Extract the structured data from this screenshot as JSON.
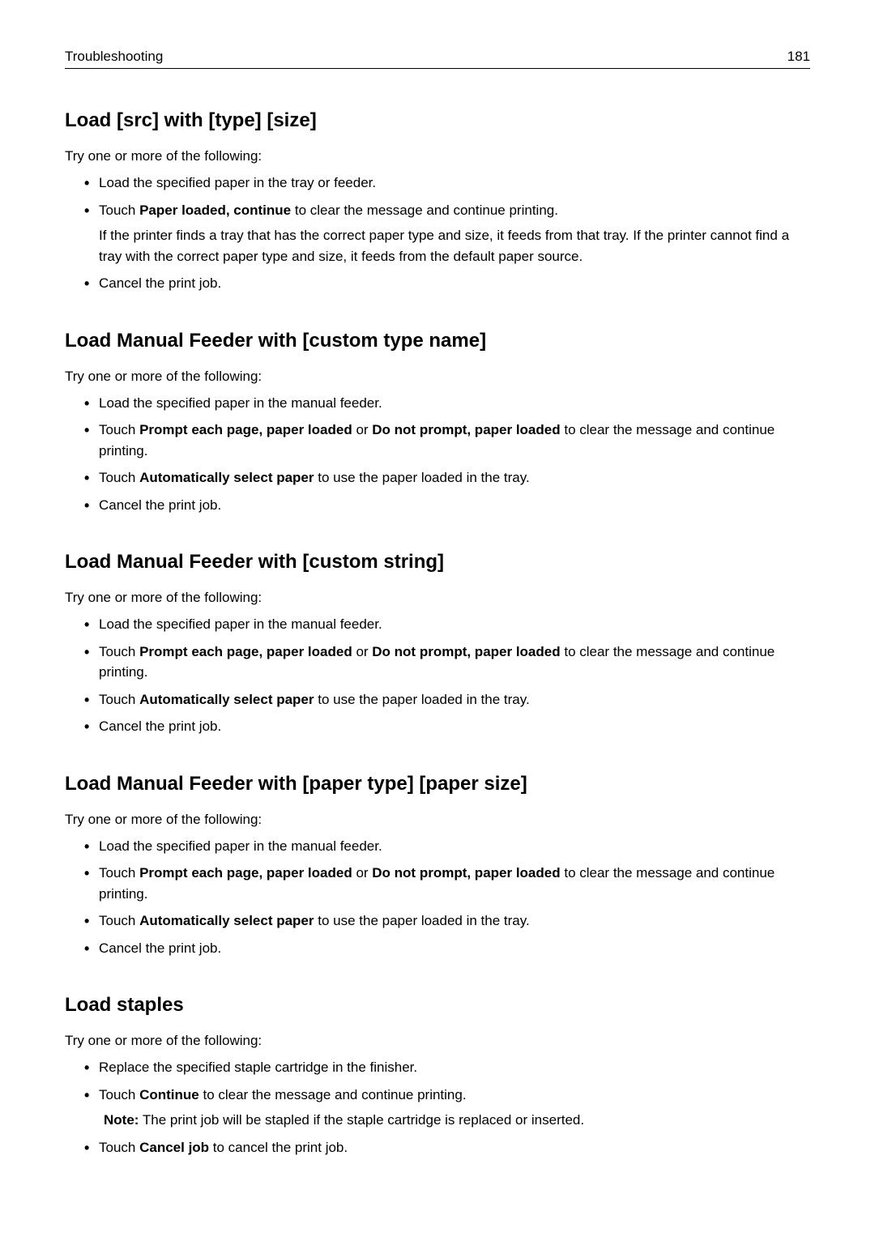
{
  "header": {
    "section_title": "Troubleshooting",
    "page_number": "181"
  },
  "sections": [
    {
      "heading": "Load [src] with [type] [size]",
      "intro": "Try one or more of the following:",
      "items": [
        {
          "runs": [
            {
              "text": "Load the specified paper in the tray or feeder.",
              "bold": false
            }
          ]
        },
        {
          "runs": [
            {
              "text": "Touch ",
              "bold": false
            },
            {
              "text": "Paper loaded, continue",
              "bold": true
            },
            {
              "text": " to clear the message and continue printing.",
              "bold": false
            }
          ],
          "subtext": "If the printer finds a tray that has the correct paper type and size, it feeds from that tray. If the printer cannot find a tray with the correct paper type and size, it feeds from the default paper source."
        },
        {
          "runs": [
            {
              "text": "Cancel the print job.",
              "bold": false
            }
          ]
        }
      ]
    },
    {
      "heading": "Load Manual Feeder with [custom type name]",
      "intro": "Try one or more of the following:",
      "items": [
        {
          "runs": [
            {
              "text": "Load the specified paper in the manual feeder.",
              "bold": false
            }
          ]
        },
        {
          "runs": [
            {
              "text": "Touch ",
              "bold": false
            },
            {
              "text": "Prompt each page, paper loaded",
              "bold": true
            },
            {
              "text": " or ",
              "bold": false
            },
            {
              "text": "Do not prompt, paper loaded",
              "bold": true
            },
            {
              "text": " to clear the message and continue printing.",
              "bold": false
            }
          ]
        },
        {
          "runs": [
            {
              "text": "Touch ",
              "bold": false
            },
            {
              "text": "Automatically select paper",
              "bold": true
            },
            {
              "text": " to use the paper loaded in the tray.",
              "bold": false
            }
          ]
        },
        {
          "runs": [
            {
              "text": "Cancel the print job.",
              "bold": false
            }
          ]
        }
      ]
    },
    {
      "heading": "Load Manual Feeder with [custom string]",
      "intro": "Try one or more of the following:",
      "items": [
        {
          "runs": [
            {
              "text": "Load the specified paper in the manual feeder.",
              "bold": false
            }
          ]
        },
        {
          "runs": [
            {
              "text": "Touch ",
              "bold": false
            },
            {
              "text": "Prompt each page, paper loaded",
              "bold": true
            },
            {
              "text": " or ",
              "bold": false
            },
            {
              "text": "Do not prompt, paper loaded",
              "bold": true
            },
            {
              "text": " to clear the message and continue printing.",
              "bold": false
            }
          ]
        },
        {
          "runs": [
            {
              "text": "Touch ",
              "bold": false
            },
            {
              "text": "Automatically select paper",
              "bold": true
            },
            {
              "text": " to use the paper loaded in the tray.",
              "bold": false
            }
          ]
        },
        {
          "runs": [
            {
              "text": "Cancel the print job.",
              "bold": false
            }
          ]
        }
      ]
    },
    {
      "heading": "Load Manual Feeder with [paper type] [paper size]",
      "intro": "Try one or more of the following:",
      "items": [
        {
          "runs": [
            {
              "text": "Load the specified paper in the manual feeder.",
              "bold": false
            }
          ]
        },
        {
          "runs": [
            {
              "text": "Touch ",
              "bold": false
            },
            {
              "text": "Prompt each page, paper loaded",
              "bold": true
            },
            {
              "text": " or ",
              "bold": false
            },
            {
              "text": "Do not prompt, paper loaded",
              "bold": true
            },
            {
              "text": " to clear the message and continue printing.",
              "bold": false
            }
          ]
        },
        {
          "runs": [
            {
              "text": "Touch ",
              "bold": false
            },
            {
              "text": "Automatically select paper",
              "bold": true
            },
            {
              "text": " to use the paper loaded in the tray.",
              "bold": false
            }
          ]
        },
        {
          "runs": [
            {
              "text": "Cancel the print job.",
              "bold": false
            }
          ]
        }
      ]
    },
    {
      "heading": "Load staples",
      "intro": "Try one or more of the following:",
      "items": [
        {
          "runs": [
            {
              "text": "Replace the specified staple cartridge in the finisher.",
              "bold": false
            }
          ]
        },
        {
          "runs": [
            {
              "text": "Touch ",
              "bold": false
            },
            {
              "text": "Continue",
              "bold": true
            },
            {
              "text": " to clear the message and continue printing.",
              "bold": false
            }
          ],
          "note_runs": [
            {
              "text": "Note:",
              "bold": true
            },
            {
              "text": " The print job will be stapled if the staple cartridge is replaced or inserted.",
              "bold": false
            }
          ]
        },
        {
          "runs": [
            {
              "text": "Touch ",
              "bold": false
            },
            {
              "text": "Cancel job",
              "bold": true
            },
            {
              "text": " to cancel the print job.",
              "bold": false
            }
          ]
        }
      ]
    }
  ]
}
